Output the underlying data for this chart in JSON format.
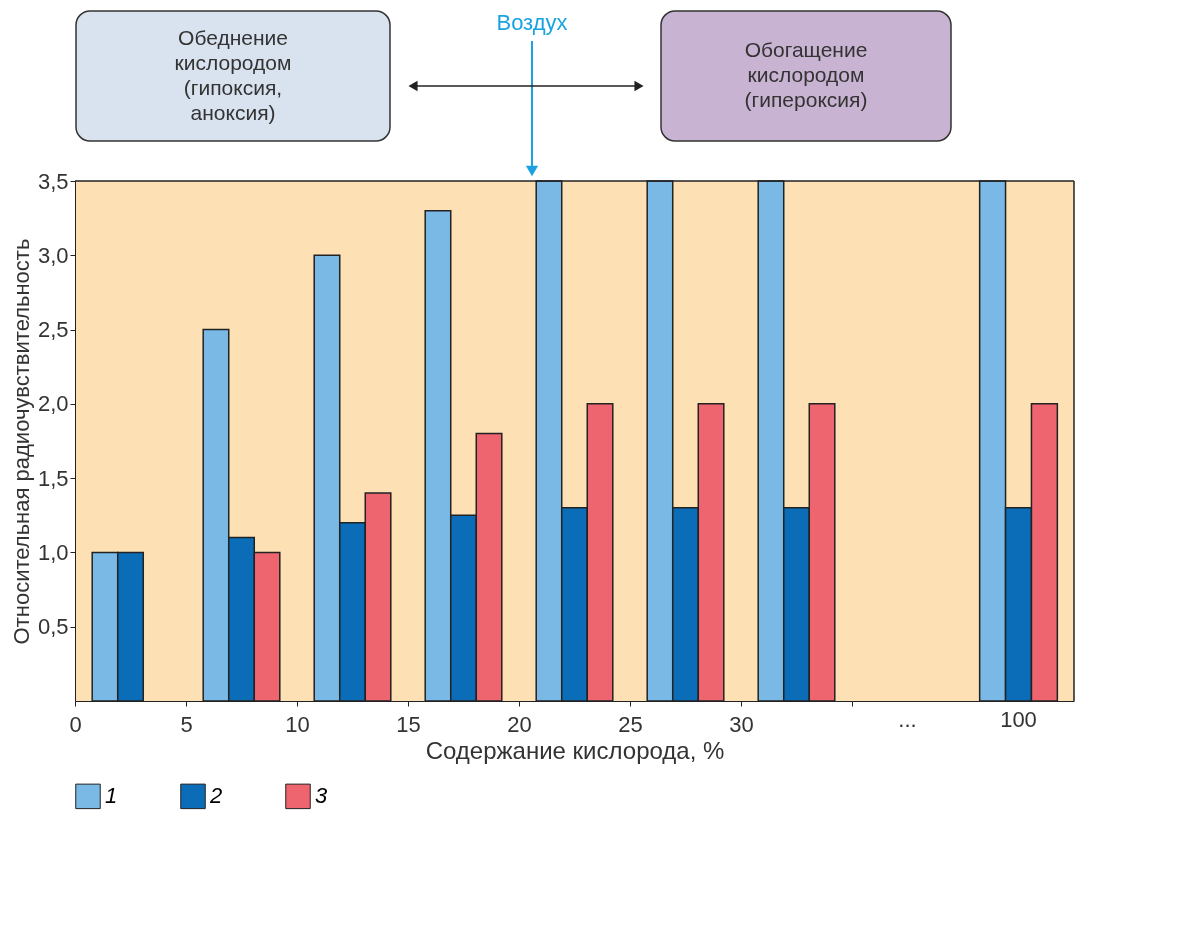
{
  "chart_data": [
    {
      "type": "bar",
      "xlabel": "Содержание кислорода, %",
      "ylabel": "Относительная радиочувствительность",
      "x": [
        2.5,
        7.5,
        12.5,
        17.5,
        22.5,
        27.5,
        32.5
      ],
      "xlim": [
        0,
        35
      ],
      "xticks": [
        0,
        5,
        10,
        15,
        20,
        25,
        30,
        {
          "value": 35,
          "label": null
        }
      ],
      "ylim": [
        0,
        3.5
      ],
      "yticks": [
        {
          "value": 0.5,
          "label": "0,5"
        },
        {
          "value": 1.0,
          "label": "1,0"
        },
        {
          "value": 1.5,
          "label": "1,5"
        },
        {
          "value": 2.0,
          "label": "2,0"
        },
        {
          "value": 2.5,
          "label": "2,5"
        },
        {
          "value": 3.0,
          "label": "3,0"
        },
        {
          "value": 3.5,
          "label": "3,5"
        }
      ],
      "series": [
        {
          "name": "1",
          "color": "#7ab8e6",
          "values": [
            1.0,
            2.5,
            3.0,
            3.3,
            3.5,
            3.5,
            3.5
          ]
        },
        {
          "name": "2",
          "color": "#0b6db8",
          "values": [
            1.0,
            1.1,
            1.2,
            1.25,
            1.3,
            1.3,
            1.3
          ]
        },
        {
          "name": "3",
          "color": "#ee6570",
          "values": [
            null,
            1.0,
            1.4,
            1.8,
            2.0,
            2.0,
            2.0
          ]
        }
      ],
      "annotations": [
        "Обеднение кислородом (гипоксия, аноксия)",
        "Воздух",
        "Обогащение кислородом (гипероксия)"
      ],
      "legend": "bottom"
    },
    {
      "type": "bar",
      "categories": [
        "...",
        "100"
      ],
      "ylim": [
        0,
        3.5
      ],
      "tick_labels": "x",
      "series": [
        {
          "color": "#7ab8e6",
          "values": [
            null,
            3.5
          ]
        },
        {
          "color": "#0b6db8",
          "values": [
            null,
            1.3
          ]
        },
        {
          "color": "#ee6570",
          "values": [
            null,
            2.0
          ]
        }
      ]
    }
  ]
}
